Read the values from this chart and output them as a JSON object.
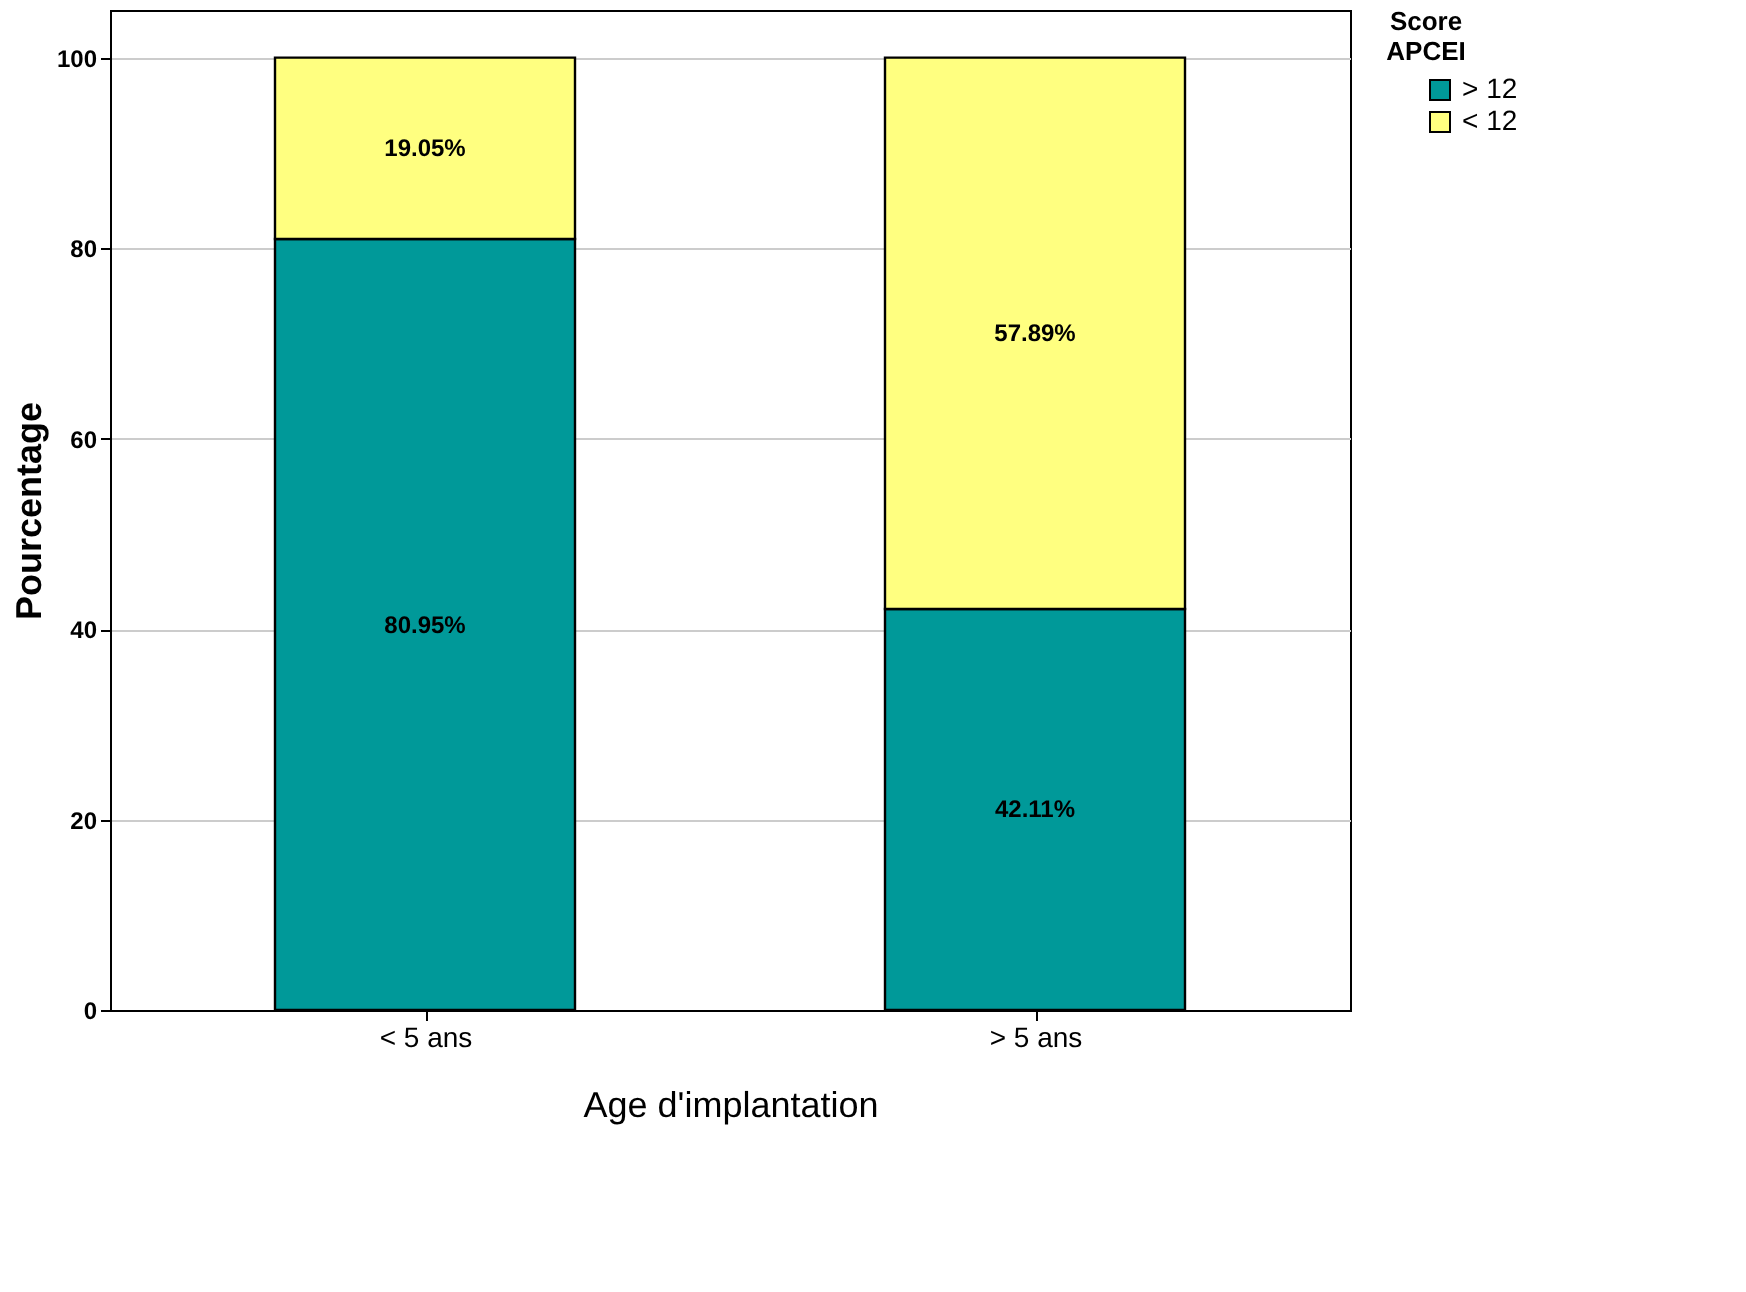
{
  "chart_data": {
    "type": "bar",
    "stacked": true,
    "xlabel": "Age d'implantation",
    "ylabel": "Pourcentage",
    "legend_title": "Score APCEI",
    "legend": "top right",
    "grid": "y",
    "categories": [
      "< 5 ans",
      "> 5 ans"
    ],
    "series": [
      {
        "name": "> 12",
        "color": "#009999",
        "values": [
          80.95,
          42.11
        ],
        "value_labels": [
          "80.95%",
          "42.11%"
        ]
      },
      {
        "name": "< 12",
        "color": "#ffff80",
        "values": [
          19.05,
          57.89
        ],
        "value_labels": [
          "19.05%",
          "57.89%"
        ]
      }
    ],
    "ylim": [
      0,
      105
    ],
    "yticks": [
      0,
      20,
      40,
      60,
      80,
      100
    ]
  }
}
